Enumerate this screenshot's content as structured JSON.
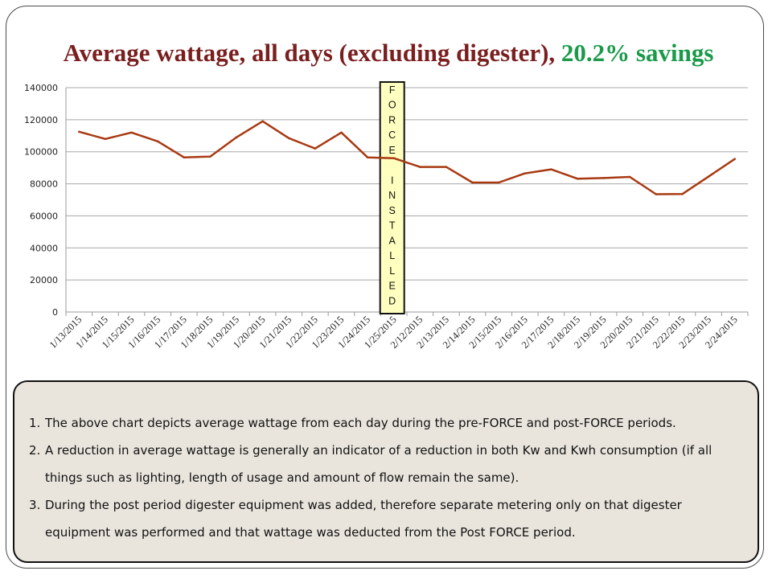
{
  "title": {
    "main": "Average wattage, all days (excluding digester), ",
    "accent": "20.2% savings",
    "accent_color": "#1a9a4a",
    "main_color": "#7a1f1f"
  },
  "chart_data": {
    "type": "line",
    "title": "",
    "xlabel": "",
    "ylabel": "",
    "ylim": [
      0,
      140000
    ],
    "yticks": [
      0,
      20000,
      40000,
      60000,
      80000,
      100000,
      120000,
      140000
    ],
    "ytick_labels": [
      "0",
      "20000",
      "40000",
      "60000",
      "80000",
      "100000",
      "120000",
      "140000"
    ],
    "grid": true,
    "legend": "none",
    "line_color": "#a83a12",
    "categories": [
      "1/13/2015",
      "1/14/2015",
      "1/15/2015",
      "1/16/2015",
      "1/17/2015",
      "1/18/2015",
      "1/19/2015",
      "1/20/2015",
      "1/21/2015",
      "1/22/2015",
      "1/23/2015",
      "1/24/2015",
      "1/25/2015",
      "2/12/2015",
      "2/13/2015",
      "2/14/2015",
      "2/15/2015",
      "2/16/2015",
      "2/17/2015",
      "2/18/2015",
      "2/19/2015",
      "2/20/2015",
      "2/21/2015",
      "2/22/2015",
      "2/23/2015",
      "2/24/2015"
    ],
    "series": [
      {
        "values": [
          112500,
          108000,
          112000,
          106500,
          96500,
          97000,
          109000,
          119000,
          108500,
          102000,
          112000,
          96500,
          96000,
          90500,
          90500,
          80800,
          80800,
          86500,
          89000,
          83200,
          83600,
          84300,
          73500,
          73600,
          84500,
          95500
        ]
      }
    ],
    "annotation": {
      "letters": [
        "F",
        "O",
        "R",
        "C",
        "E",
        "",
        "I",
        "N",
        "S",
        "T",
        "A",
        "L",
        "L",
        "E",
        "D"
      ],
      "at_category": "1/25/2015",
      "fill": "#ffffc0"
    }
  },
  "notes": [
    {
      "num": "1.",
      "text": "The above chart depicts average wattage from each day during the pre-FORCE and post-FORCE periods."
    },
    {
      "num": "2.",
      "text": "A reduction in average wattage is generally an indicator of a reduction in both Kw and Kwh consumption (if all things such as lighting, length of usage and amount of flow remain the same)."
    },
    {
      "num": "3.",
      "text": "During the post period digester equipment was added, therefore separate metering only on that digester equipment was performed and that wattage was deducted from the Post FORCE period."
    }
  ]
}
